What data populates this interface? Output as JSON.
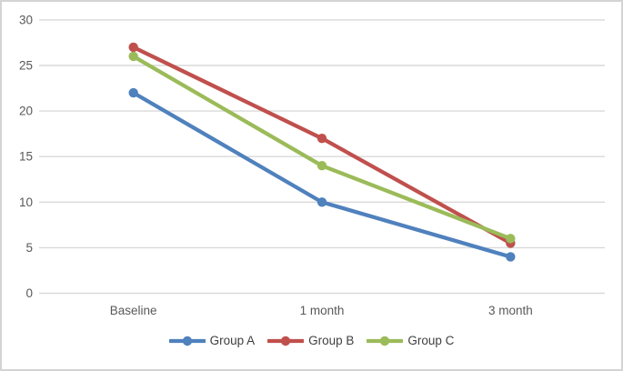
{
  "figure": {
    "frame_color": "#d4d4d4",
    "background": "#ffffff"
  },
  "chart_data": {
    "type": "line",
    "title": "",
    "xlabel": "",
    "ylabel": "",
    "categories": [
      "Baseline",
      "1 month",
      "3 month"
    ],
    "series": [
      {
        "name": "Group A",
        "color": "#4F81BD",
        "values": [
          22,
          10,
          4
        ]
      },
      {
        "name": "Group B",
        "color": "#C0504D",
        "values": [
          27,
          17,
          5.5
        ]
      },
      {
        "name": "Group C",
        "color": "#9BBB59",
        "values": [
          26,
          14,
          6
        ]
      }
    ],
    "ylim": [
      0,
      30
    ],
    "yticks": [
      0,
      5,
      10,
      15,
      20,
      25,
      30
    ],
    "grid": true,
    "legend_position": "bottom",
    "marker": "circle",
    "gridline_color": "#d9d9d9",
    "tick_label_color": "#595959",
    "category_label_color": "#595959",
    "legend_label_color": "#404040"
  }
}
